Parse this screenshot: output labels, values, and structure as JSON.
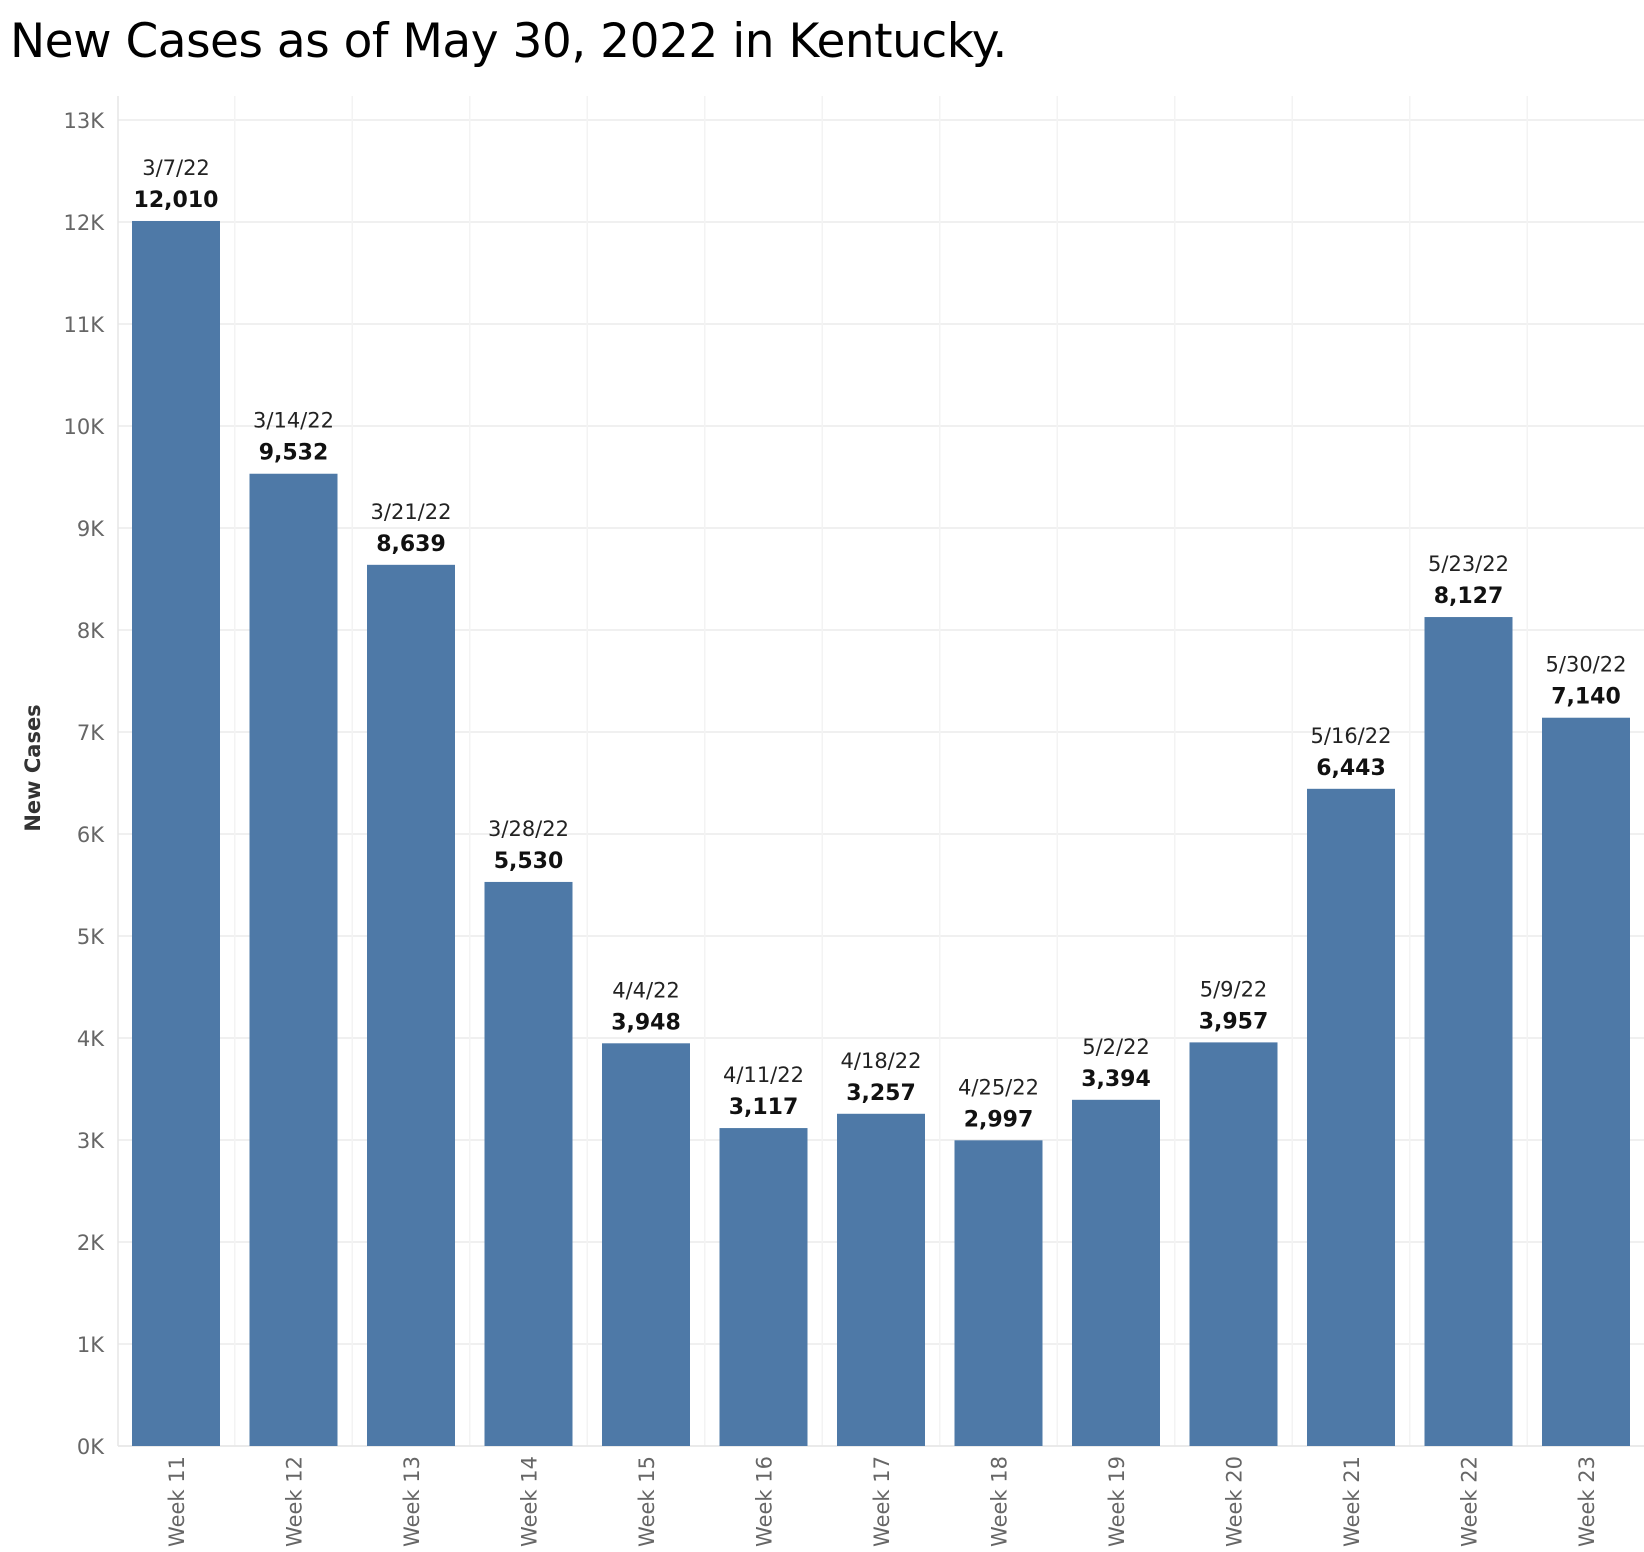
{
  "chart_data": {
    "type": "bar",
    "title": "New Cases as of May 30, 2022 in Kentucky.",
    "ylabel": "New Cases",
    "xlabel": "",
    "ylim": [
      0,
      13000
    ],
    "yticks": [
      "0K",
      "1K",
      "2K",
      "3K",
      "4K",
      "5K",
      "6K",
      "7K",
      "8K",
      "9K",
      "10K",
      "11K",
      "12K",
      "13K"
    ],
    "grid": true,
    "bar_color": "#4e79a7",
    "categories": [
      "Week 11",
      "Week 12",
      "Week 13",
      "Week 14",
      "Week 15",
      "Week 16",
      "Week 17",
      "Week 18",
      "Week 19",
      "Week 20",
      "Week 21",
      "Week 22",
      "Week 23"
    ],
    "dates": [
      "3/7/22",
      "3/14/22",
      "3/21/22",
      "3/28/22",
      "4/4/22",
      "4/11/22",
      "4/18/22",
      "4/25/22",
      "5/2/22",
      "5/9/22",
      "5/16/22",
      "5/23/22",
      "5/30/22"
    ],
    "values": [
      12010,
      9532,
      8639,
      5530,
      3948,
      3117,
      3257,
      2997,
      3394,
      3957,
      6443,
      8127,
      7140
    ],
    "value_labels": [
      "12,010",
      "9,532",
      "8,639",
      "5,530",
      "3,948",
      "3,117",
      "3,257",
      "2,997",
      "3,394",
      "3,957",
      "6,443",
      "8,127",
      "7,140"
    ]
  }
}
